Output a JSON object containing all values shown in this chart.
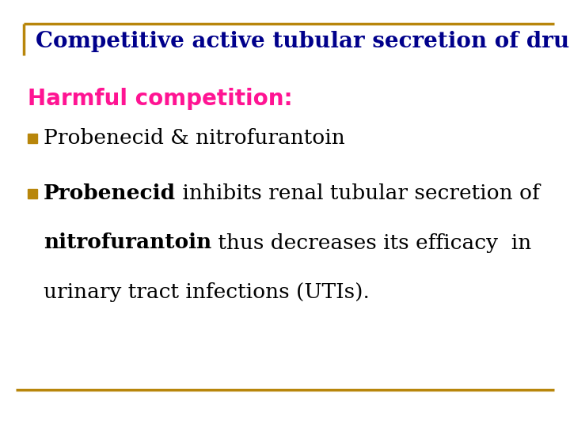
{
  "title": "Competitive active tubular secretion of drugs",
  "title_color": "#00008B",
  "title_fontsize": 20,
  "title_weight": "bold",
  "background_color": "#FFFFFF",
  "border_color": "#B8860B",
  "harmful_label": "Harmful competition:",
  "harmful_color": "#FF1493",
  "harmful_fontsize": 20,
  "harmful_weight": "bold",
  "bullet_color": "#B8860B",
  "bullet1_text": "Probenecid & nitrofurantoin",
  "bullet1_fontsize": 19,
  "bullet2_line1_bold": "Probenecid",
  "bullet2_line1_rest": " inhibits renal tubular secretion of",
  "bullet2_line2_bold": "nitrofurantoin",
  "bullet2_line2_rest": " thus decreases its efficacy  in",
  "bullet2_line3": "urinary tract infections (UTIs).",
  "bullet2_fontsize": 19,
  "bottom_line_color": "#B8860B",
  "left_border_color": "#B8860B",
  "text_color": "#000000"
}
